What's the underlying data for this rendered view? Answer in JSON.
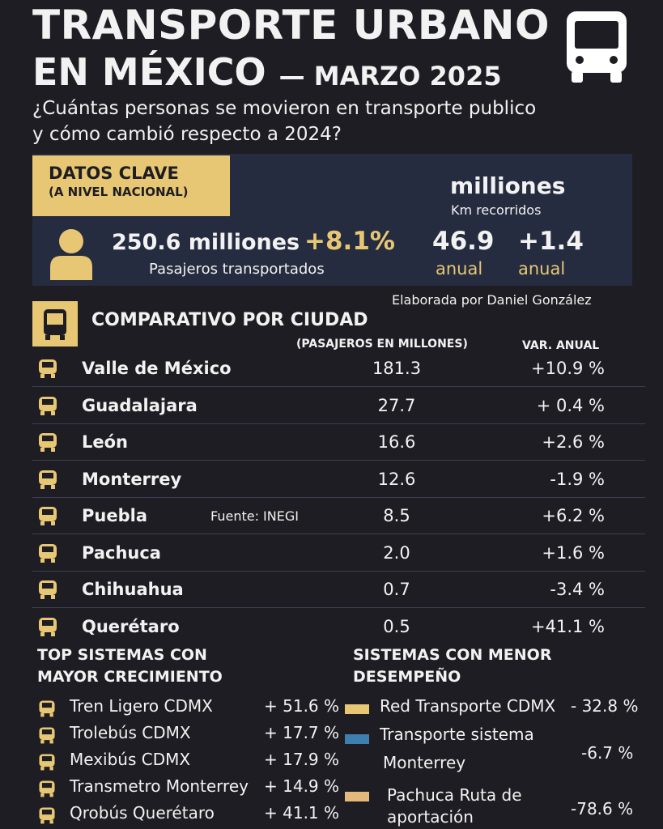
{
  "header": {
    "title_line1": "TRANSPORTE URBANO",
    "title_line2": "EN MÉXICO",
    "title_date": "— MARZO 2025",
    "subtitle": "¿Cuántas personas se movieron en transporte publico y cómo cambió respecto a 2024?",
    "icon": "bus-icon"
  },
  "key_data": {
    "title": "DATOS CLAVE",
    "subtitle": "(A NIVEL NACIONAL)",
    "passengers": "250.6 milliones",
    "passengers_change": "+8.1%",
    "passengers_label": "Pasajeros transportados",
    "km_unit": "milliones",
    "km_label": "Km recorridos",
    "km_value": "46.9",
    "km_value_label": "anual",
    "km_change": "+1.4",
    "km_change_label": "anual"
  },
  "credit": "Elaborada por Daniel González",
  "source": "Fuente: INEGI",
  "comparison": {
    "title": "COMPARATIVO POR CIUDAD",
    "col_value": "(PASAJEROS EN MILLONES)",
    "col_var": "VAR. ANUAL",
    "rows": [
      {
        "city": "Valle de México",
        "value": "181.3",
        "var": "+10.9 %",
        "icon": "car-icon"
      },
      {
        "city": "Guadalajara",
        "value": "27.7",
        "var": "+ 0.4 %",
        "icon": "bus-icon"
      },
      {
        "city": "León",
        "value": "16.6",
        "var": "+2.6 %",
        "icon": "car-icon"
      },
      {
        "city": "Monterrey",
        "value": "12.6",
        "var": "-1.9 %",
        "icon": "train-icon"
      },
      {
        "city": "Puebla",
        "value": "8.5",
        "var": "+6.2 %",
        "icon": "cable-car-icon"
      },
      {
        "city": "Pachuca",
        "value": "2.0",
        "var": "+1.6 %",
        "icon": "building-icon"
      },
      {
        "city": "Chihuahua",
        "value": "0.7",
        "var": "-3.4 %",
        "icon": "car-icon"
      },
      {
        "city": "Querétaro",
        "value": "0.5",
        "var": "+41.1 %",
        "icon": "metro-icon"
      }
    ]
  },
  "top": {
    "title_line1": "TOP SISTEMAS CON",
    "title_line2": "MAYOR CRECIMIENTO",
    "items": [
      {
        "name": "Tren Ligero CDMX",
        "var": "+ 51.6 %"
      },
      {
        "name": "Trolebús CDMX",
        "var": "+ 17.7 %"
      },
      {
        "name": "Mexibús CDMX",
        "var": "+ 17.9 %"
      },
      {
        "name": "Transmetro Monterrey",
        "var": "+ 14.9 %"
      },
      {
        "name": "Qrobús Querétaro",
        "var": "+ 41.1 %"
      }
    ]
  },
  "worst": {
    "title_line1": "SISTEMAS CON MENOR",
    "title_line2": "DESEMPEÑO",
    "items": [
      {
        "name": "Red Transporte CDMX",
        "var": "- 32.8 %",
        "color": "#e7c774"
      },
      {
        "name_line1": "Transporte  sistema",
        "name_line2": "Monterrey",
        "var": "-6.7 %",
        "color": "#3f7fb0"
      },
      {
        "name_line1": "Pachuca Ruta de",
        "name_line2": "aportación",
        "var": "-78.6 %",
        "color": "#e3b87a"
      }
    ]
  }
}
